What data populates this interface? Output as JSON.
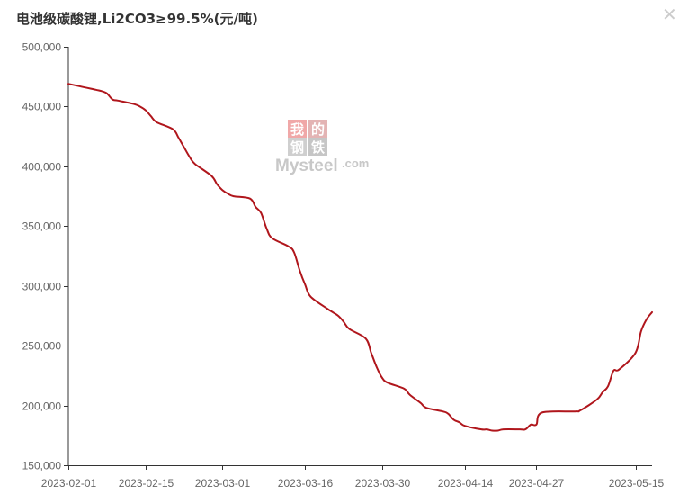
{
  "title": "电池级碳酸锂,Li2CO3≥99.5%(元/吨)",
  "close_icon": "close-icon",
  "watermark": {
    "chars": [
      "我",
      "的",
      "钢",
      "铁"
    ],
    "brand": "Mysteel",
    "suffix": ".com"
  },
  "colors": {
    "series": "#b0161c",
    "axis": "#333333",
    "tick_text": "#666666"
  },
  "chart_data": {
    "type": "line",
    "title": "电池级碳酸锂,Li2CO3≥99.5%(元/吨)",
    "xlabel": "",
    "ylabel": "",
    "ylim": [
      150000,
      500000
    ],
    "yticks": [
      150000,
      200000,
      250000,
      300000,
      350000,
      400000,
      450000,
      500000
    ],
    "ytick_labels": [
      "150,000",
      "200,000",
      "250,000",
      "300,000",
      "350,000",
      "400,000",
      "450,000",
      "500,000"
    ],
    "xticks": [
      "2023-02-01",
      "2023-02-15",
      "2023-03-01",
      "2023-03-16",
      "2023-03-30",
      "2023-04-14",
      "2023-04-27",
      "2023-05-15"
    ],
    "grid": false,
    "series": [
      {
        "name": "",
        "x": [
          "2023-02-01",
          "2023-02-03",
          "2023-02-06",
          "2023-02-07",
          "2023-02-08",
          "2023-02-09",
          "2023-02-10",
          "2023-02-13",
          "2023-02-14",
          "2023-02-15",
          "2023-02-16",
          "2023-02-17",
          "2023-02-20",
          "2023-02-21",
          "2023-02-22",
          "2023-02-23",
          "2023-02-24",
          "2023-02-27",
          "2023-02-28",
          "2023-03-01",
          "2023-03-02",
          "2023-03-03",
          "2023-03-06",
          "2023-03-07",
          "2023-03-08",
          "2023-03-09",
          "2023-03-10",
          "2023-03-13",
          "2023-03-14",
          "2023-03-15",
          "2023-03-16",
          "2023-03-17",
          "2023-03-20",
          "2023-03-21",
          "2023-03-22",
          "2023-03-23",
          "2023-03-24",
          "2023-03-27",
          "2023-03-28",
          "2023-03-29",
          "2023-03-30",
          "2023-03-31",
          "2023-04-03",
          "2023-04-04",
          "2023-04-06",
          "2023-04-07",
          "2023-04-10",
          "2023-04-11",
          "2023-04-12",
          "2023-04-13",
          "2023-04-14",
          "2023-04-17",
          "2023-04-18",
          "2023-04-19",
          "2023-04-20",
          "2023-04-21",
          "2023-04-24",
          "2023-04-25",
          "2023-04-26",
          "2023-04-27",
          "2023-04-28",
          "2023-05-04",
          "2023-05-05",
          "2023-05-08",
          "2023-05-09",
          "2023-05-10",
          "2023-05-11",
          "2023-05-12",
          "2023-05-15",
          "2023-05-16",
          "2023-05-17",
          "2023-05-18"
        ],
        "values": [
          469000,
          467000,
          464000,
          463000,
          461000,
          456000,
          455000,
          452000,
          450000,
          447000,
          442000,
          437000,
          431000,
          424000,
          416000,
          408000,
          402000,
          392000,
          385000,
          380000,
          377000,
          375000,
          373000,
          366000,
          361000,
          348000,
          340000,
          333000,
          328000,
          313000,
          301000,
          291000,
          281000,
          278000,
          275000,
          270000,
          264000,
          256000,
          244000,
          232000,
          223000,
          219000,
          214000,
          209000,
          202000,
          198000,
          195000,
          193000,
          188000,
          186000,
          183000,
          180000,
          180000,
          179000,
          179000,
          180000,
          180000,
          180000,
          184000,
          184000,
          194000,
          195000,
          196000,
          205000,
          211000,
          216000,
          229000,
          230000,
          244000,
          262000,
          272000,
          278000
        ]
      }
    ]
  }
}
